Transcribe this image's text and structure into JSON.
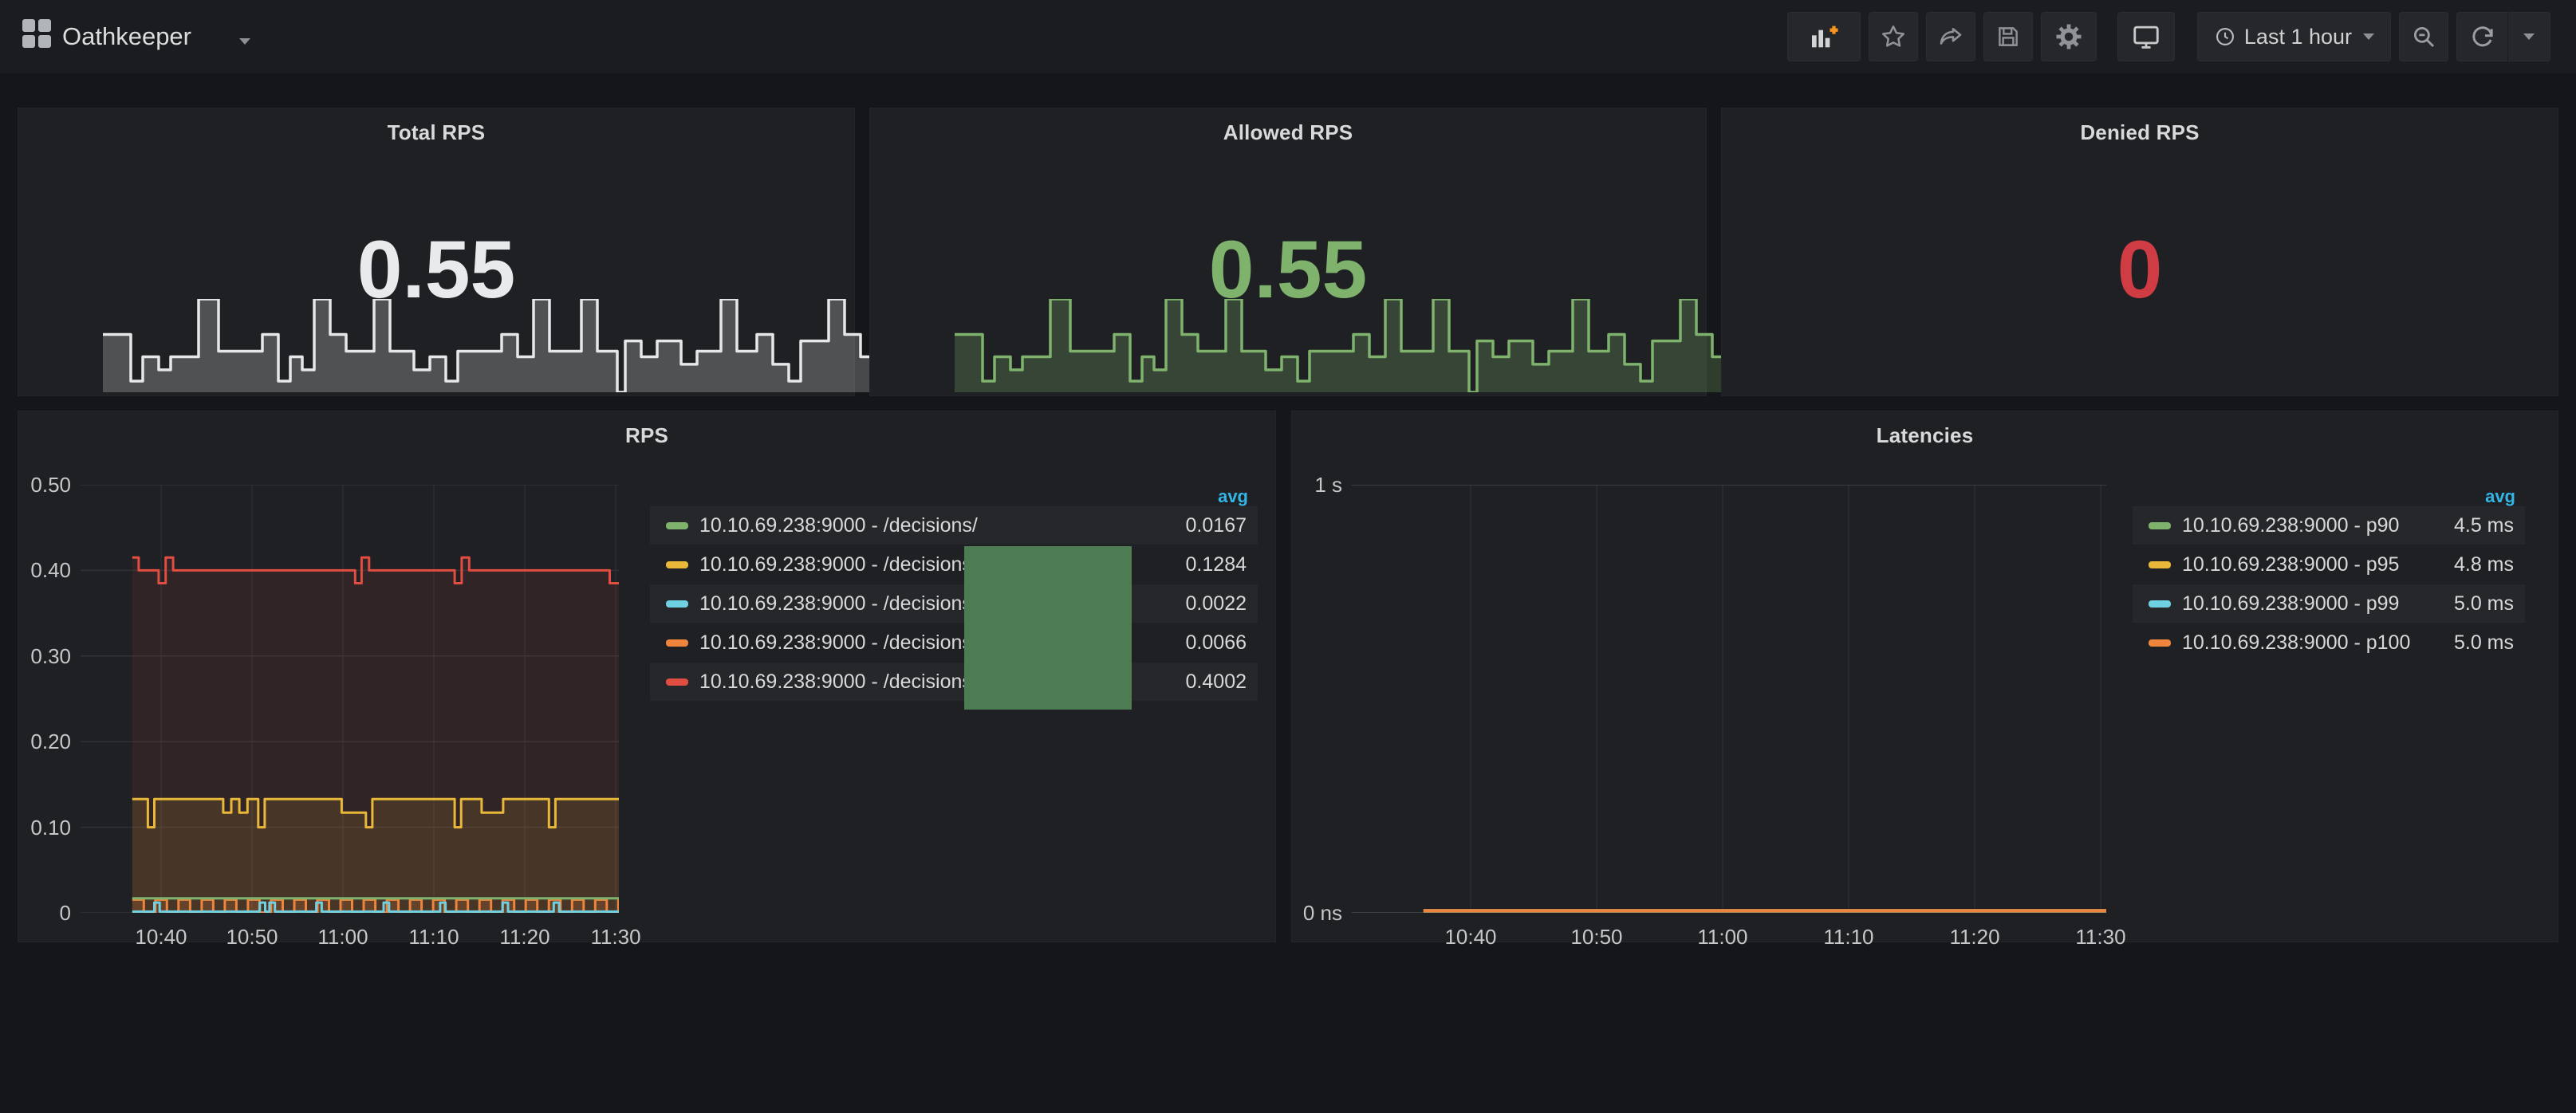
{
  "navbar": {
    "title": "Oathkeeper",
    "time_range": "Last 1 hour",
    "icons": [
      "add-panel",
      "star",
      "share",
      "save",
      "settings",
      "cycle-view-mode",
      "clock",
      "zoom-out",
      "refresh",
      "refresh-interval-caret"
    ]
  },
  "colors": {
    "accent_blue": "#33b5e5",
    "green": "#7eb26d",
    "yellow": "#eab839",
    "blue": "#6ed0e0",
    "orange": "#ef843c",
    "red": "#e24d42",
    "stat_red": "#d03c44",
    "artifact_green": "#4d7c53"
  },
  "stats": [
    {
      "title": "Total RPS",
      "value": "0.55",
      "value_color": "#e9eaeb",
      "spark_stroke": "#e6e7e9",
      "spark_fill": "rgba(255,255,255,0.22)",
      "sparkline": true
    },
    {
      "title": "Allowed RPS",
      "value": "0.55",
      "value_color": "#7eb26d",
      "spark_stroke": "#7eb26d",
      "spark_fill": "rgba(126,178,109,0.25)",
      "sparkline": true
    },
    {
      "title": "Denied RPS",
      "value": "0",
      "value_color": "#d03c44",
      "sparkline": false
    }
  ],
  "sparkline": {
    "points": [
      [
        0,
        0.62
      ],
      [
        3.5,
        0.62
      ],
      [
        3.5,
        0.12
      ],
      [
        5,
        0.12
      ],
      [
        5,
        0.38
      ],
      [
        7,
        0.38
      ],
      [
        7,
        0.24
      ],
      [
        8.5,
        0.24
      ],
      [
        8.5,
        0.38
      ],
      [
        12,
        0.38
      ],
      [
        12,
        1
      ],
      [
        14.5,
        1
      ],
      [
        14.5,
        0.44
      ],
      [
        20,
        0.44
      ],
      [
        20,
        0.62
      ],
      [
        22,
        0.62
      ],
      [
        22,
        0.12
      ],
      [
        23.5,
        0.12
      ],
      [
        23.5,
        0.38
      ],
      [
        25,
        0.38
      ],
      [
        25,
        0.24
      ],
      [
        26.5,
        0.24
      ],
      [
        26.5,
        1
      ],
      [
        28.5,
        1
      ],
      [
        28.5,
        0.62
      ],
      [
        30.5,
        0.62
      ],
      [
        30.5,
        0.44
      ],
      [
        34,
        0.44
      ],
      [
        34,
        1
      ],
      [
        36,
        1
      ],
      [
        36,
        0.44
      ],
      [
        39,
        0.44
      ],
      [
        39,
        0.24
      ],
      [
        41,
        0.24
      ],
      [
        41,
        0.38
      ],
      [
        43,
        0.38
      ],
      [
        43,
        0.12
      ],
      [
        44.5,
        0.12
      ],
      [
        44.5,
        0.44
      ],
      [
        50,
        0.44
      ],
      [
        50,
        0.62
      ],
      [
        52,
        0.62
      ],
      [
        52,
        0.38
      ],
      [
        54,
        0.38
      ],
      [
        54,
        1
      ],
      [
        56,
        1
      ],
      [
        56,
        0.44
      ],
      [
        60,
        0.44
      ],
      [
        60,
        1
      ],
      [
        62,
        1
      ],
      [
        62,
        0.44
      ],
      [
        64.5,
        0.44
      ],
      [
        64.5,
        0
      ],
      [
        65.5,
        0
      ],
      [
        65.5,
        0.55
      ],
      [
        67.5,
        0.55
      ],
      [
        67.5,
        0.38
      ],
      [
        69.5,
        0.38
      ],
      [
        69.5,
        0.55
      ],
      [
        72.5,
        0.55
      ],
      [
        72.5,
        0.3
      ],
      [
        74.5,
        0.3
      ],
      [
        74.5,
        0.44
      ],
      [
        77.5,
        0.44
      ],
      [
        77.5,
        1
      ],
      [
        79.5,
        1
      ],
      [
        79.5,
        0.44
      ],
      [
        82,
        0.44
      ],
      [
        82,
        0.62
      ],
      [
        84,
        0.62
      ],
      [
        84,
        0.3
      ],
      [
        86,
        0.3
      ],
      [
        86,
        0.12
      ],
      [
        87.5,
        0.12
      ],
      [
        87.5,
        0.55
      ],
      [
        91,
        0.55
      ],
      [
        91,
        1
      ],
      [
        93,
        1
      ],
      [
        93,
        0.62
      ],
      [
        95,
        0.62
      ],
      [
        95,
        0.38
      ],
      [
        97.5,
        0.38
      ],
      [
        97.5,
        0.44
      ],
      [
        100,
        0.44
      ]
    ]
  },
  "chart_data": [
    {
      "type": "line",
      "title": "RPS",
      "legend_header": "avg",
      "x_ticks": [
        "10:40",
        "10:50",
        "11:00",
        "11:10",
        "11:20",
        "11:30"
      ],
      "y_ticks": [
        "0.50",
        "0.40",
        "0.30",
        "0.20",
        "0.10",
        "0"
      ],
      "ylim": [
        0,
        0.5
      ],
      "grid": true,
      "legend_position": "right",
      "series": [
        {
          "name": "10.10.69.238:9000 - /decisions/",
          "avg": "0.0167",
          "color": "#7eb26d",
          "fill": "none",
          "points": [
            [
              9.6,
              0.017
            ],
            [
              100,
              0.017
            ]
          ]
        },
        {
          "name": "10.10.69.238:9000 - /decisions/",
          "avg": "0.1284",
          "color": "#eab839",
          "fill": "rgba(234,184,57,0.12)",
          "points": [
            [
              9.6,
              0.133
            ],
            [
              12.5,
              0.133
            ],
            [
              12.5,
              0.1
            ],
            [
              13.7,
              0.1
            ],
            [
              13.7,
              0.133
            ],
            [
              26.5,
              0.133
            ],
            [
              26.5,
              0.117
            ],
            [
              28,
              0.117
            ],
            [
              28,
              0.133
            ],
            [
              29.5,
              0.133
            ],
            [
              29.5,
              0.117
            ],
            [
              31,
              0.117
            ],
            [
              31,
              0.133
            ],
            [
              33,
              0.133
            ],
            [
              33,
              0.1
            ],
            [
              34.2,
              0.1
            ],
            [
              34.2,
              0.133
            ],
            [
              48.5,
              0.133
            ],
            [
              48.5,
              0.117
            ],
            [
              53,
              0.117
            ],
            [
              53,
              0.1
            ],
            [
              54.2,
              0.1
            ],
            [
              54.2,
              0.133
            ],
            [
              69.5,
              0.133
            ],
            [
              69.5,
              0.1
            ],
            [
              70.7,
              0.1
            ],
            [
              70.7,
              0.133
            ],
            [
              74.5,
              0.133
            ],
            [
              74.5,
              0.117
            ],
            [
              78.5,
              0.117
            ],
            [
              78.5,
              0.133
            ],
            [
              87,
              0.133
            ],
            [
              87,
              0.1
            ],
            [
              88.2,
              0.1
            ],
            [
              88.2,
              0.133
            ],
            [
              100,
              0.133
            ]
          ]
        },
        {
          "name": "10.10.69.238:9000 - /decisions/",
          "avg": "0.0022",
          "color": "#6ed0e0",
          "fill": "none",
          "points": {
            "type": "spikes",
            "from": 9.6,
            "to": 100,
            "base": 0.0015,
            "height": 0.012,
            "width": 1.0,
            "at": [
              14.2,
              33.8,
              35.6,
              44.3,
              56.8,
              67.3,
              78.9,
              88.4
            ]
          }
        },
        {
          "name": "10.10.69.238:9000 - /decisions/",
          "avg": "0.0066",
          "color": "#ef843c",
          "fill": "rgba(239,132,60,0.18)",
          "points": {
            "type": "square",
            "from": 9.6,
            "to": 100,
            "period": 4.3,
            "duty": 0.5,
            "high": 0.0155,
            "low": 0.0005
          }
        },
        {
          "name": "10.10.69.238:9000 - /decisions/",
          "avg": "0.4002",
          "color": "#e24d42",
          "fill": "rgba(226,77,66,0.10)",
          "points": [
            [
              9.6,
              0.415
            ],
            [
              10.8,
              0.415
            ],
            [
              10.8,
              0.4
            ],
            [
              14.5,
              0.4
            ],
            [
              14.5,
              0.385
            ],
            [
              15.8,
              0.385
            ],
            [
              15.8,
              0.415
            ],
            [
              17.2,
              0.415
            ],
            [
              17.2,
              0.4
            ],
            [
              51,
              0.4
            ],
            [
              51,
              0.385
            ],
            [
              52.2,
              0.385
            ],
            [
              52.2,
              0.415
            ],
            [
              53.6,
              0.415
            ],
            [
              53.6,
              0.4
            ],
            [
              69.5,
              0.4
            ],
            [
              69.5,
              0.385
            ],
            [
              70.8,
              0.385
            ],
            [
              70.8,
              0.415
            ],
            [
              72.2,
              0.415
            ],
            [
              72.2,
              0.4
            ],
            [
              98.3,
              0.4
            ],
            [
              98.3,
              0.385
            ],
            [
              100,
              0.385
            ]
          ]
        }
      ]
    },
    {
      "type": "line",
      "title": "Latencies",
      "legend_header": "avg",
      "x_ticks": [
        "10:40",
        "10:50",
        "11:00",
        "11:10",
        "11:20",
        "11:30"
      ],
      "y_ticks": [
        "1 s",
        "0 ns"
      ],
      "ylim": [
        0,
        1
      ],
      "grid": true,
      "legend_position": "right",
      "series": [
        {
          "name": "10.10.69.238:9000 - p90",
          "avg": "4.5 ms",
          "color": "#7eb26d",
          "fill": "none",
          "points": [
            [
              9.5,
              0.0045
            ],
            [
              100,
              0.0045
            ]
          ]
        },
        {
          "name": "10.10.69.238:9000 - p95",
          "avg": "4.8 ms",
          "color": "#eab839",
          "fill": "none",
          "points": [
            [
              9.5,
              0.0048
            ],
            [
              100,
              0.0048
            ]
          ]
        },
        {
          "name": "10.10.69.238:9000 - p99",
          "avg": "5.0 ms",
          "color": "#6ed0e0",
          "fill": "none",
          "points": [
            [
              9.5,
              0.005
            ],
            [
              100,
              0.005
            ]
          ]
        },
        {
          "name": "10.10.69.238:9000 - p100",
          "avg": "5.0 ms",
          "color": "#ef843c",
          "fill": "rgba(239,132,60,0.25)",
          "points": [
            [
              9.5,
              0.005
            ],
            [
              100,
              0.005
            ]
          ]
        }
      ]
    }
  ]
}
